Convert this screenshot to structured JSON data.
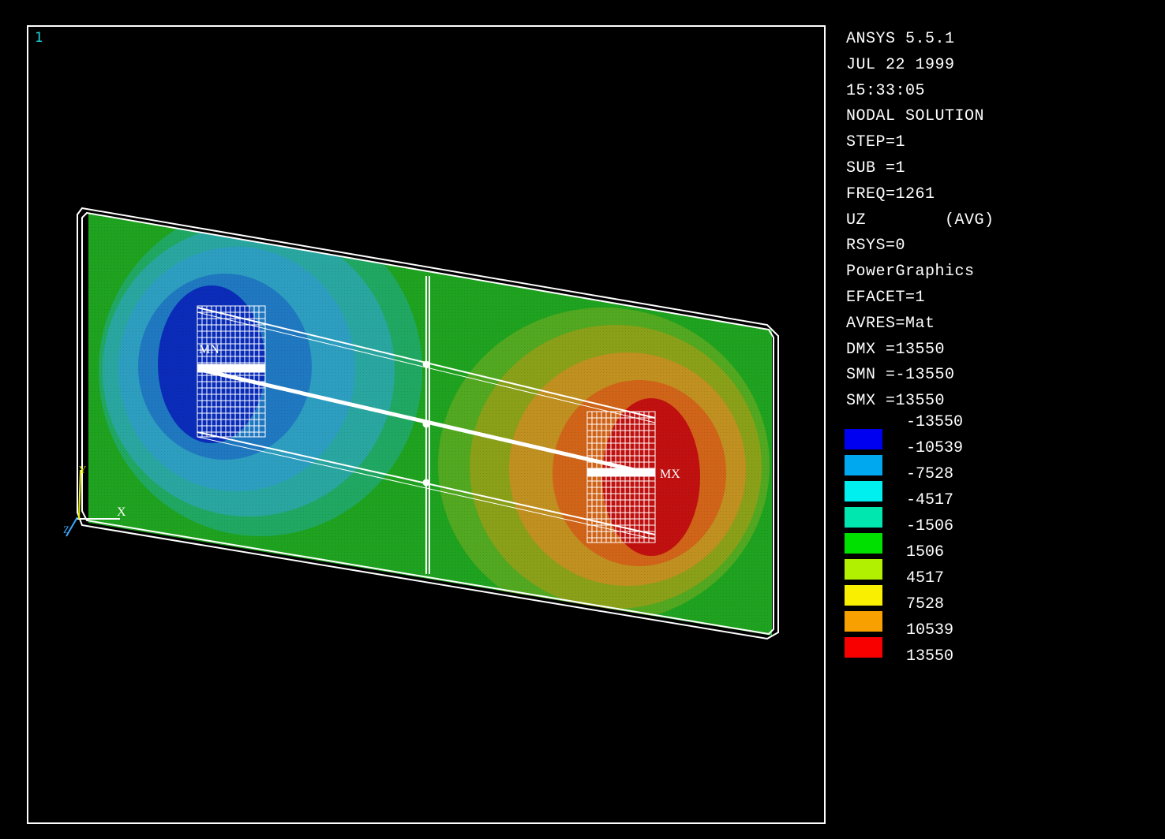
{
  "window": {
    "number": "1"
  },
  "info_lines": [
    "ANSYS 5.5.1",
    "JUL 22 1999",
    "15:33:05",
    "NODAL SOLUTION",
    "STEP=1",
    "SUB =1",
    "FREQ=1261",
    "UZ        (AVG)",
    "RSYS=0",
    "PowerGraphics",
    "EFACET=1",
    "AVRES=Mat",
    "DMX =13550",
    "SMN =-13550",
    "SMX =13550"
  ],
  "legend": {
    "min_label": "-13550",
    "bands": [
      {
        "color": "#0000f0",
        "label": "-10539"
      },
      {
        "color": "#00a8f0",
        "label": "-7528"
      },
      {
        "color": "#00f0f0",
        "label": "-4517"
      },
      {
        "color": "#00e8b0",
        "label": "-1506"
      },
      {
        "color": "#00e000",
        "label": "1506"
      },
      {
        "color": "#b0f000",
        "label": "4517"
      },
      {
        "color": "#f8f000",
        "label": "7528"
      },
      {
        "color": "#f8a000",
        "label": "10539"
      },
      {
        "color": "#f80000",
        "label": "13550"
      }
    ]
  },
  "markers": {
    "min": "MN",
    "max": "MX"
  },
  "triad": {
    "x": "X",
    "y": "Y",
    "z": "Z"
  }
}
